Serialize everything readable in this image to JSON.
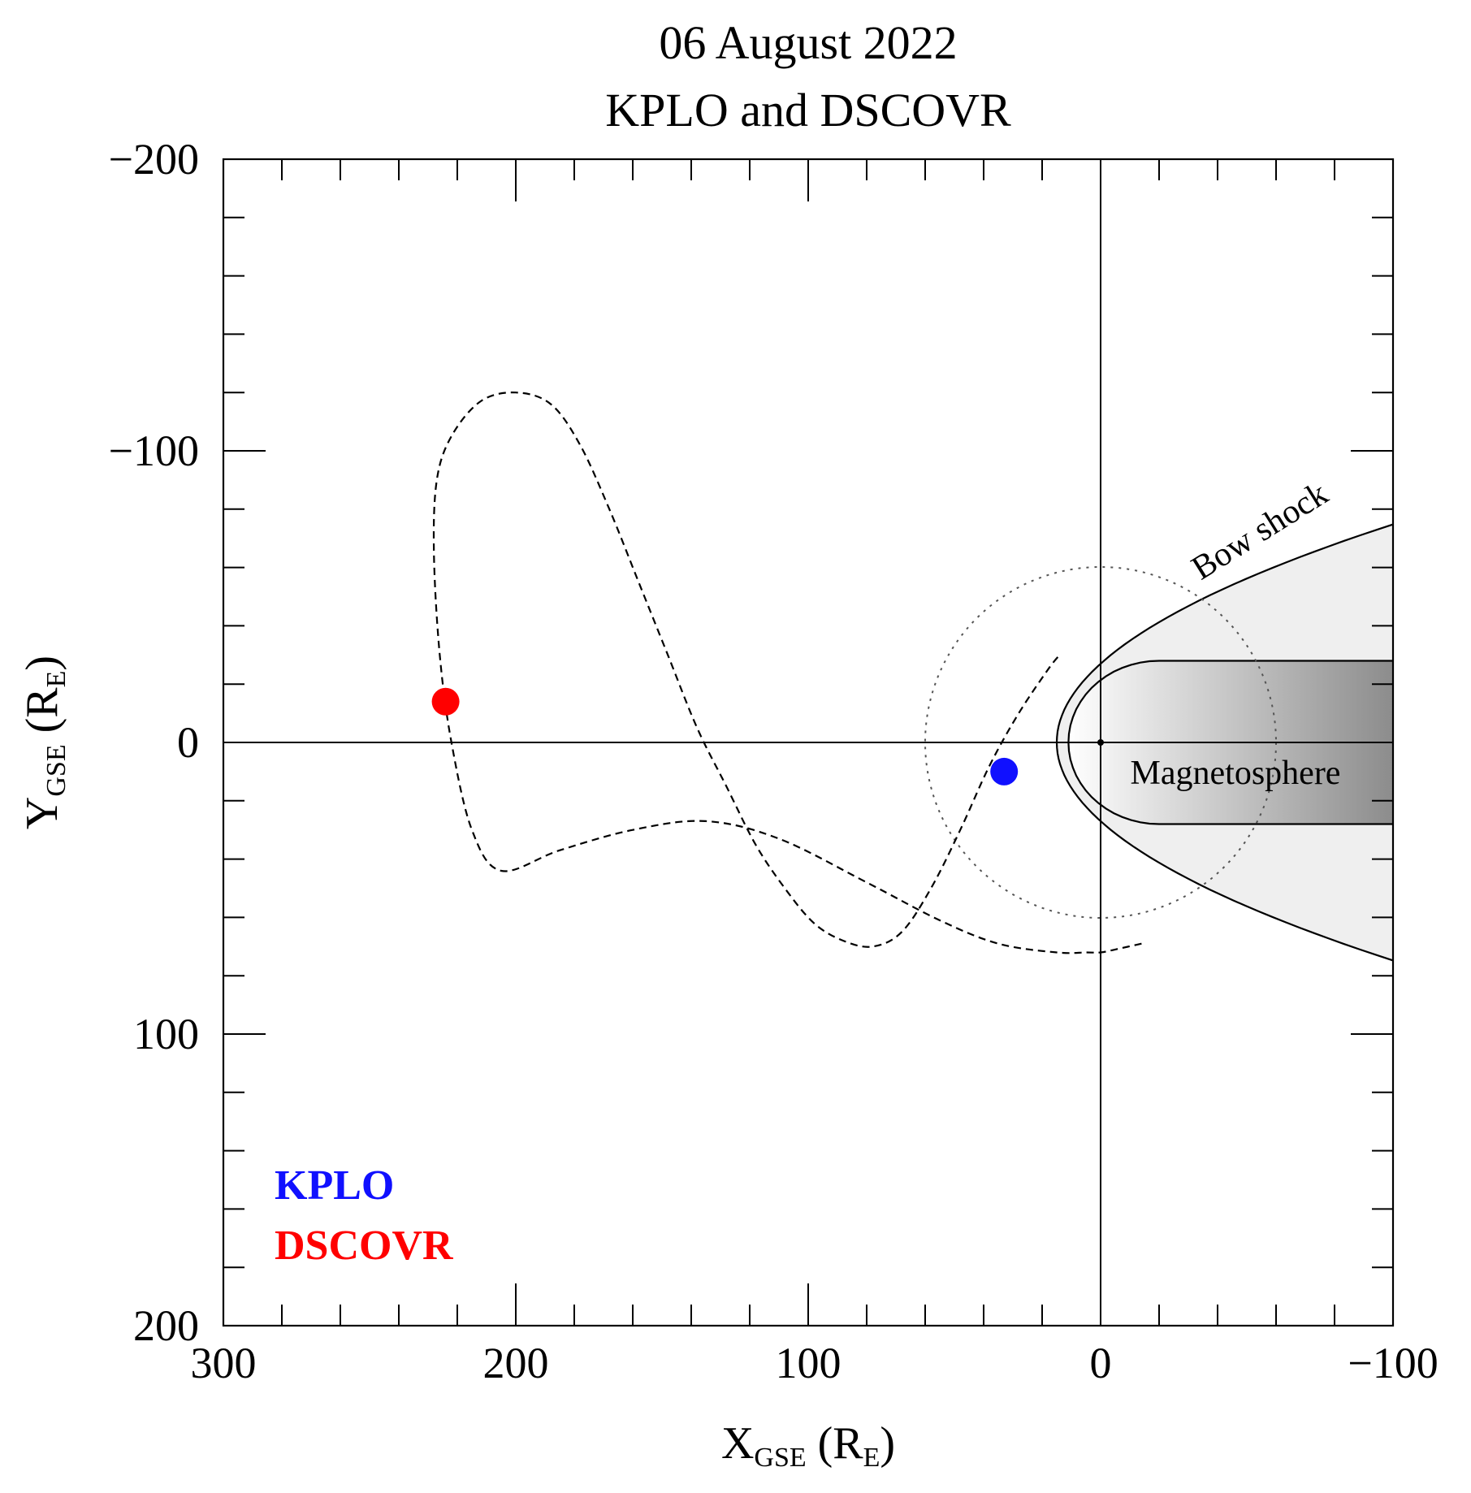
{
  "chart_data": {
    "type": "scatter",
    "title_line1": "06 August 2022",
    "title_line2": "KPLO and DSCOVR",
    "xaxis": {
      "label_main": "X",
      "label_sub": "GSE",
      "label_paren_open": " (R",
      "label_unit_sub": "E",
      "label_paren_close": ")",
      "range": [
        300,
        -100
      ],
      "ticks": [
        300,
        200,
        100,
        0,
        -100
      ],
      "tick_labels": [
        "300",
        "200",
        "100",
        "0",
        "−100"
      ],
      "minor_step": 20
    },
    "yaxis": {
      "label_main": "Y",
      "label_sub": "GSE",
      "label_paren_open": " (R",
      "label_unit_sub": "E",
      "label_paren_close": ")",
      "range": [
        -200,
        200
      ],
      "ticks": [
        -200,
        -100,
        0,
        100,
        200
      ],
      "tick_labels": [
        "−200",
        "−100",
        "0",
        "100",
        "200"
      ],
      "minor_step": 20
    },
    "legend": {
      "placement": "bottom-left",
      "entries": [
        {
          "label": "KPLO",
          "color": "#1010ff"
        },
        {
          "label": "DSCOVR",
          "color": "#ff0000"
        }
      ]
    },
    "points": [
      {
        "name": "KPLO",
        "x": 33,
        "y": 10,
        "color": "#1010ff"
      },
      {
        "name": "DSCOVR",
        "x": 224,
        "y": -14,
        "color": "#ff0000"
      }
    ],
    "trajectory": {
      "style": "dashed",
      "x": [
        -14,
        -5,
        0,
        5,
        15,
        35,
        55,
        80,
        110,
        135,
        160,
        185,
        205,
        215,
        222,
        226,
        228,
        227,
        222,
        212,
        200,
        188,
        178,
        168,
        158,
        148,
        138,
        128,
        118,
        108,
        98,
        88,
        78,
        68,
        58,
        48,
        38,
        28,
        18,
        14
      ],
      "y": [
        69,
        71,
        72,
        72,
        72,
        69,
        61,
        48,
        33,
        27,
        30,
        37,
        44,
        30,
        0,
        -30,
        -65,
        -90,
        -105,
        -117,
        -120,
        -116,
        -102,
        -80,
        -55,
        -30,
        -5,
        15,
        35,
        50,
        62,
        68,
        70,
        65,
        50,
        30,
        8,
        -10,
        -25,
        -30
      ]
    },
    "lunar_orbit_circle": {
      "style": "dotted",
      "center": [
        0,
        0
      ],
      "radius": 60
    },
    "earth": {
      "x": 0,
      "y": 0
    },
    "bow_shock": {
      "label": "Bow shock",
      "nose_x": 15,
      "y_at_x_0": 27,
      "y_at_x_minus100": 96
    },
    "magnetosphere": {
      "label": "Magnetosphere",
      "nose_x": 11,
      "y_at_x_minus100": 28
    },
    "colors": {
      "bow_shock_fill": "#efefef",
      "magnetosphere_fill_start": "#ffffff",
      "magnetosphere_fill_end": "#8c8c8c"
    }
  }
}
